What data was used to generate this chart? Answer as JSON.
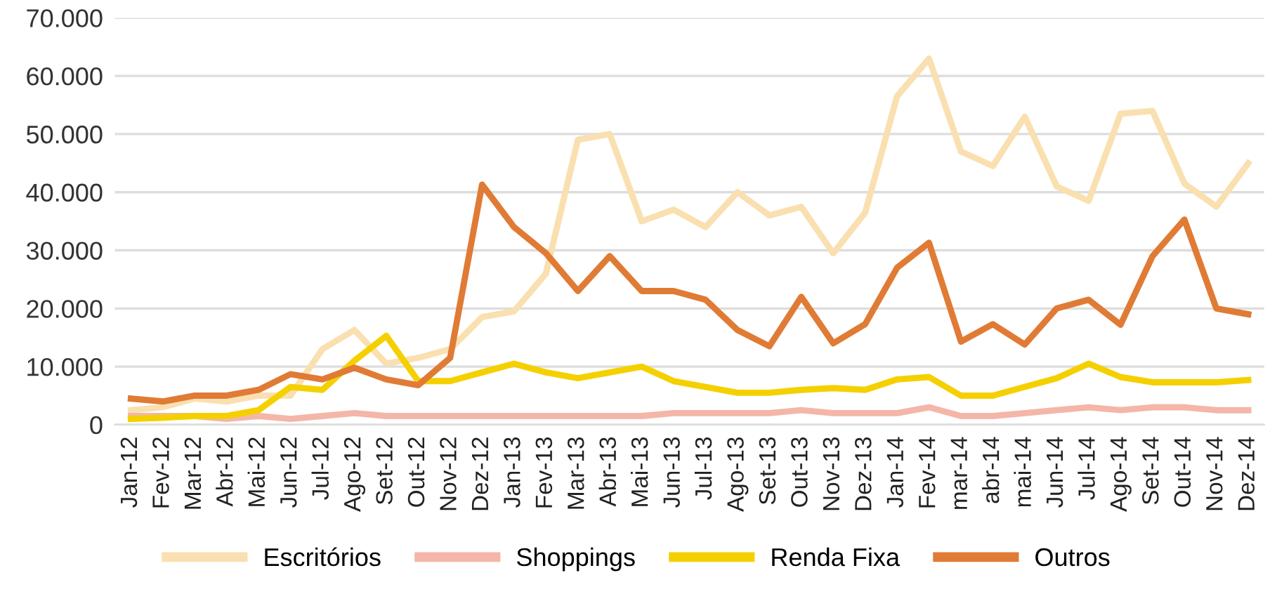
{
  "chart_data": {
    "type": "line",
    "categories": [
      "Jan-12",
      "Fev-12",
      "Mar-12",
      "Abr-12",
      "Mai-12",
      "Jun-12",
      "Jul-12",
      "Ago-12",
      "Set-12",
      "Out-12",
      "Nov-12",
      "Dez-12",
      "Jan-13",
      "Fev-13",
      "Mar-13",
      "Abr-13",
      "Mai-13",
      "Jun-13",
      "Jul-13",
      "Ago-13",
      "Set-13",
      "Out-13",
      "Nov-13",
      "Dez-13",
      "Jan-14",
      "Fev-14",
      "mar-14",
      "abr-14",
      "mai-14",
      "Jun-14",
      "Jul-14",
      "Ago-14",
      "Set-14",
      "Out-14",
      "Nov-14",
      "Dez-14"
    ],
    "series": [
      {
        "name": "Escritórios",
        "color": "#fae0b0",
        "values": [
          2500,
          3000,
          4500,
          4000,
          5000,
          5000,
          13000,
          16300,
          10500,
          11500,
          13000,
          18500,
          19500,
          26000,
          49000,
          50000,
          35000,
          37000,
          34000,
          40000,
          36000,
          37500,
          29500,
          36500,
          56500,
          63000,
          47000,
          44500,
          53000,
          41000,
          38500,
          53500,
          54000,
          41500,
          37500,
          45000
        ]
      },
      {
        "name": "Shoppings",
        "color": "#f4b6a8",
        "values": [
          1500,
          1500,
          1500,
          1000,
          1500,
          1000,
          1500,
          2000,
          1500,
          1500,
          1500,
          1500,
          1500,
          1500,
          1500,
          1500,
          1500,
          2000,
          2000,
          2000,
          2000,
          2500,
          2000,
          2000,
          2000,
          3000,
          1500,
          1500,
          2000,
          2500,
          3000,
          2500,
          3000,
          3000,
          2500,
          2500
        ]
      },
      {
        "name": "Renda Fixa",
        "color": "#f5d000",
        "values": [
          1000,
          1200,
          1500,
          1500,
          2500,
          6500,
          6000,
          11000,
          15300,
          7500,
          7500,
          9000,
          10500,
          9000,
          8000,
          9000,
          10000,
          7500,
          6500,
          5500,
          5500,
          6000,
          6300,
          6000,
          7800,
          8200,
          5000,
          5000,
          6500,
          8000,
          10500,
          8200,
          7300,
          7300,
          7300,
          7700
        ]
      },
      {
        "name": "Outros",
        "color": "#e07b35",
        "values": [
          4500,
          4000,
          5000,
          5000,
          6000,
          8700,
          7800,
          9800,
          7800,
          6800,
          11500,
          41300,
          34000,
          29500,
          23000,
          29000,
          23000,
          23000,
          21500,
          16300,
          13500,
          22000,
          14000,
          17300,
          27000,
          31300,
          14300,
          17300,
          13800,
          20000,
          21500,
          17200,
          29000,
          35300,
          20000,
          19000
        ]
      }
    ],
    "ylim": [
      0,
      70000
    ],
    "yticks": [
      {
        "value": 0,
        "label": "0"
      },
      {
        "value": 10000,
        "label": "10.000"
      },
      {
        "value": 20000,
        "label": "20.000"
      },
      {
        "value": 30000,
        "label": "30.000"
      },
      {
        "value": 40000,
        "label": "40.000"
      },
      {
        "value": 50000,
        "label": "50.000"
      },
      {
        "value": 60000,
        "label": "60.000"
      },
      {
        "value": 70000,
        "label": "70.000"
      }
    ],
    "grid": "y",
    "legend": "bottom",
    "marker": "none",
    "line_style": "solid"
  }
}
